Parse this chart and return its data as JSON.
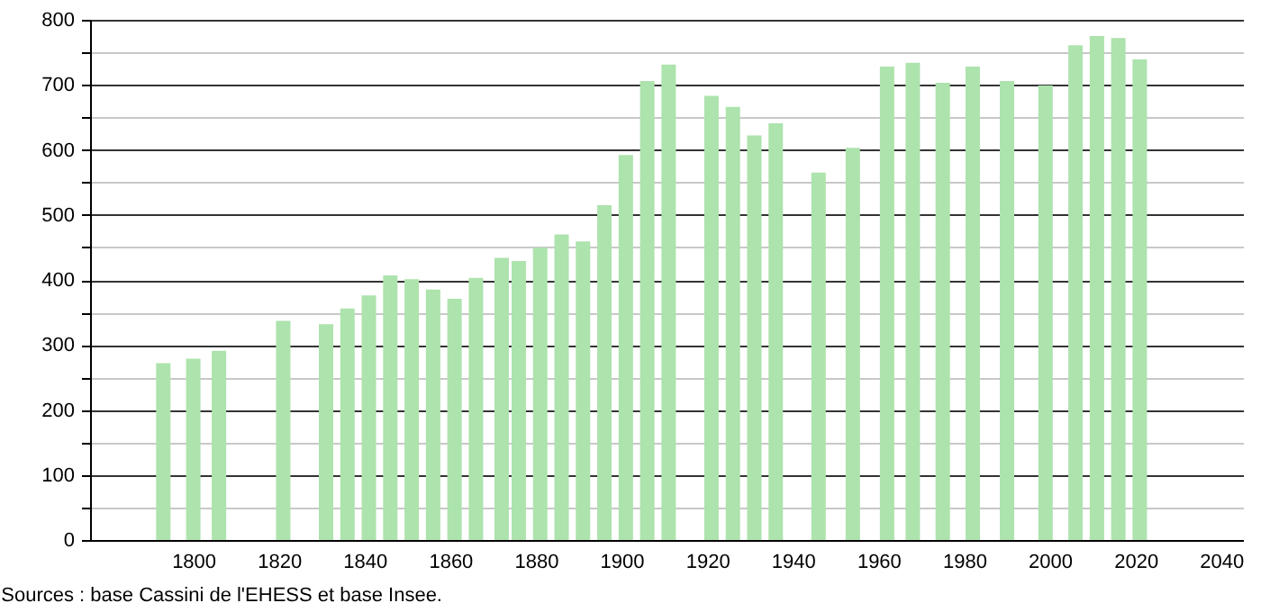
{
  "chart_data": {
    "type": "bar",
    "x": [
      1793,
      1800,
      1806,
      1821,
      1831,
      1836,
      1841,
      1846,
      1851,
      1856,
      1861,
      1866,
      1872,
      1876,
      1881,
      1886,
      1891,
      1896,
      1901,
      1906,
      1911,
      1921,
      1926,
      1931,
      1936,
      1946,
      1954,
      1962,
      1968,
      1975,
      1982,
      1990,
      1999,
      2006,
      2011,
      2016,
      2021
    ],
    "values": [
      272,
      279,
      291,
      337,
      332,
      356,
      376,
      407,
      401,
      385,
      371,
      403,
      434,
      429,
      450,
      470,
      459,
      515,
      592,
      706,
      731,
      683,
      666,
      622,
      641,
      565,
      603,
      728,
      734,
      703,
      728,
      706,
      699,
      761,
      775,
      772,
      739
    ],
    "color": "#ade3ad",
    "xlim": [
      1778,
      2043
    ],
    "xticks": [
      1800,
      1820,
      1840,
      1860,
      1880,
      1900,
      1920,
      1940,
      1960,
      1980,
      2000,
      2020,
      2040
    ],
    "ylim": [
      0,
      800
    ],
    "yticks": [
      0,
      {
        "value": 50,
        "label": null
      },
      100,
      {
        "value": 150,
        "label": null
      },
      200,
      {
        "value": 250,
        "label": null
      },
      300,
      {
        "value": 350,
        "label": null
      },
      400,
      {
        "value": 450,
        "label": null
      },
      500,
      {
        "value": 550,
        "label": null
      },
      600,
      {
        "value": 650,
        "label": null
      },
      700,
      {
        "value": 750,
        "label": null
      },
      800
    ],
    "grid": "y",
    "annotations": [
      "Sources : base Cassini de l'EHESS et base Insee."
    ]
  }
}
